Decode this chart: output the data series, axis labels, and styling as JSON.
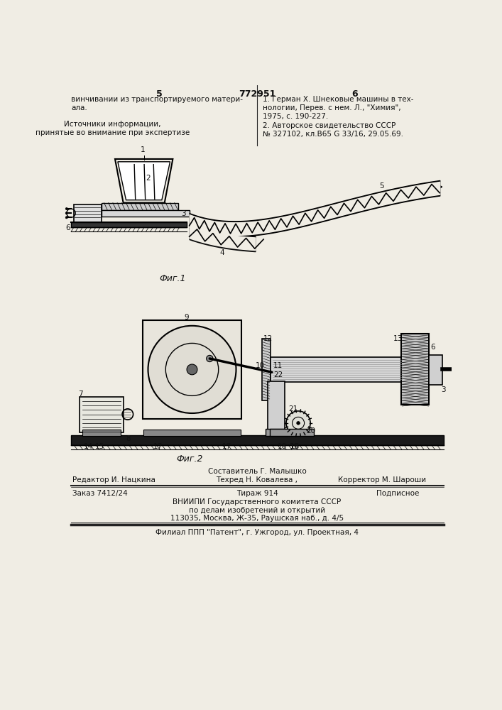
{
  "page_color": "#f0ede4",
  "title_number": "772951",
  "col_left": "5",
  "col_right": "6",
  "text_top_left": "винчивании из транспортируемого матери-\nала.",
  "text_sources": "Источники информации,\nпринятые во внимание при экспертизе",
  "text_ref1": "1. Герман Х. Шнековые машины в тех-\nнологии, Перев. с нем. Л., \"Химия\",\n1975, с. 190-227.",
  "text_ref2": "2. Авторское свидетельство СССР\n№ 327102, кл.B65 G 33/16, 29.05.69.",
  "fig1_label": "Фиг.1",
  "fig2_label": "Фиг.2",
  "author_line": "Составитель Г. Малышко",
  "tech_line": "Техред Н. Ковалева ,",
  "editor_line": "Редактор И. Нацкина",
  "corrector_line": "Корректор М. Шароши",
  "order_line": "Заказ 7412/24",
  "tirazh_line": "Тираж 914",
  "podpisnoe_line": "Подписное",
  "org_line1": "ВНИИПИ Государственного комитета СССР",
  "org_line2": "по делам изобретений и открытий",
  "org_line3": "113035, Москва, Ж-35, Раушская наб., д. 4/5",
  "filial_line": "Филиал ППП \"Патент\", г. Ужгород, ул. Проектная, 4",
  "line_color": "#222222",
  "text_color": "#111111"
}
